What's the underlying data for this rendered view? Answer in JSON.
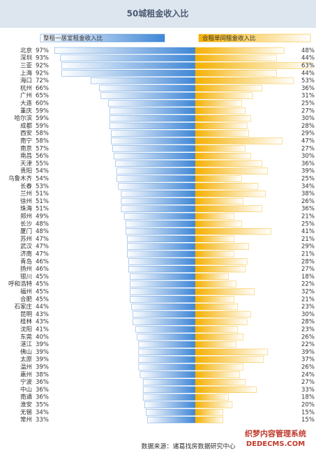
{
  "chart_data": {
    "type": "butterfly-bar",
    "title": "50城租金收入比",
    "categories": [
      "北京",
      "深圳",
      "三亚",
      "上海",
      "海口",
      "杭州",
      "广州",
      "大连",
      "重庆",
      "哈尔滨",
      "成都",
      "西安",
      "南宁",
      "南京",
      "南昌",
      "天津",
      "贵阳",
      "乌鲁木齐",
      "长春",
      "兰州",
      "徐州",
      "珠海",
      "郑州",
      "长沙",
      "厦门",
      "苏州",
      "武汉",
      "济南",
      "青岛",
      "扬州",
      "银川",
      "呼和浩特",
      "福州",
      "合肥",
      "石家庄",
      "昆明",
      "桂林",
      "沈阳",
      "东莞",
      "湛江",
      "佛山",
      "太原",
      "温州",
      "惠州",
      "宁波",
      "中山",
      "南通",
      "淮安",
      "无锡",
      "常州"
    ],
    "series": [
      {
        "name": "整租一居室租金收入比",
        "color": "#3f86d6",
        "xlim": [
          0,
          100
        ],
        "values": [
          97,
          93,
          92,
          92,
          72,
          66,
          65,
          60,
          59,
          59,
          59,
          58,
          58,
          57,
          56,
          55,
          54,
          54,
          53,
          51,
          51,
          51,
          49,
          48,
          48,
          47,
          47,
          47,
          46,
          46,
          45,
          45,
          45,
          45,
          44,
          43,
          43,
          41,
          40,
          39,
          39,
          39,
          39,
          38,
          36,
          36,
          36,
          35,
          34,
          33
        ],
        "value_labels": [
          "97%",
          "93%",
          "92%",
          "92%",
          "72%",
          "66%",
          "65%",
          "60%",
          "59%",
          "59%",
          "59%",
          "58%",
          "58%",
          "57%",
          "56%",
          "55%",
          "54%",
          "54%",
          "53%",
          "51%",
          "51%",
          "51%",
          "49%",
          "48%",
          "48%",
          "47%",
          "47%",
          "47%",
          "46%",
          "46%",
          "45%",
          "45%",
          "45%",
          "45%",
          "44%",
          "43%",
          "43%",
          "41%",
          "40%",
          "39%",
          "39%",
          "39%",
          "39%",
          "38%",
          "36%",
          "36%",
          "36%",
          "35%",
          "34%",
          "33%"
        ]
      },
      {
        "name": "合租单间租金收入比",
        "color": "#f5b000",
        "xlim": [
          0,
          65
        ],
        "values": [
          48,
          44,
          63,
          44,
          53,
          36,
          31,
          25,
          27,
          30,
          28,
          29,
          47,
          27,
          30,
          36,
          39,
          25,
          34,
          38,
          26,
          36,
          21,
          25,
          41,
          21,
          29,
          21,
          28,
          27,
          18,
          22,
          32,
          21,
          23,
          30,
          28,
          23,
          26,
          22,
          39,
          37,
          26,
          24,
          27,
          33,
          18,
          20,
          15,
          15
        ],
        "value_labels": [
          "48%",
          "44%",
          "63%",
          "44%",
          "53%",
          "36%",
          "31%",
          "25%",
          "27%",
          "30%",
          "28%",
          "29%",
          "47%",
          "27%",
          "30%",
          "36%",
          "39%",
          "25%",
          "34%",
          "38%",
          "26%",
          "36%",
          "21%",
          "25%",
          "41%",
          "21%",
          "29%",
          "21%",
          "28%",
          "27%",
          "18%",
          "22%",
          "32%",
          "21%",
          "23%",
          "30%",
          "28%",
          "23%",
          "26%",
          "22%",
          "39%",
          "37%",
          "26%",
          "24%",
          "27%",
          "33%",
          "18%",
          "20%",
          "15%",
          "15%"
        ]
      }
    ],
    "source": "数据来源：诸葛找房数据研究中心",
    "watermark": [
      "织梦内容管理系统",
      "DEDECMS.COM"
    ]
  }
}
